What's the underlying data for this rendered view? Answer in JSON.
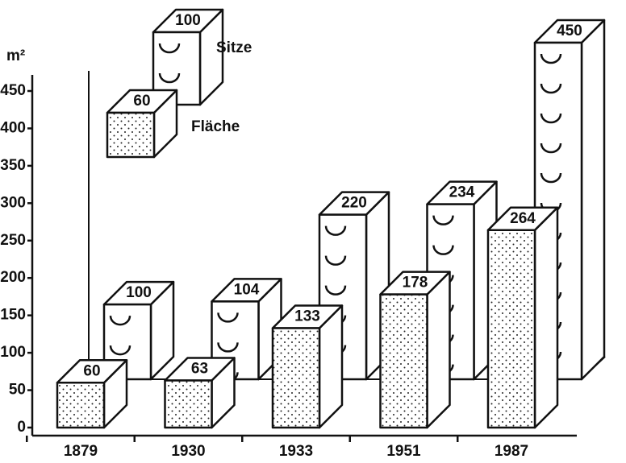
{
  "chart_data": {
    "type": "bar3d",
    "y_axis_label": "m²",
    "categories": [
      "1879",
      "1930",
      "1933",
      "1951",
      "1987"
    ],
    "series": [
      {
        "name": "Fläche",
        "color": "#ffffff",
        "values": [
          60,
          63,
          133,
          178,
          264
        ]
      },
      {
        "name": "Sitze",
        "color": "#ffffff",
        "values": [
          100,
          104,
          220,
          234,
          450
        ]
      }
    ],
    "legend_examples": [
      {
        "series": "Sitze",
        "value": 100
      },
      {
        "series": "Fläche",
        "value": 60
      }
    ],
    "ylim": [
      0,
      450
    ],
    "yticks": [
      0,
      50,
      100,
      150,
      200,
      250,
      300,
      350,
      400,
      450
    ]
  }
}
